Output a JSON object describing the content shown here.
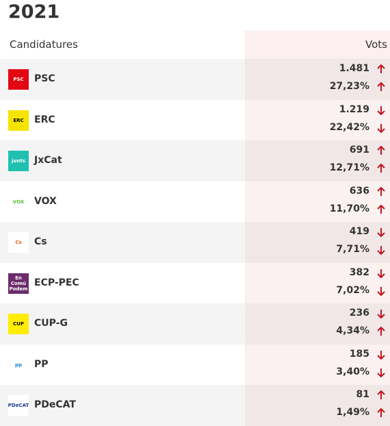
{
  "title": "2021",
  "table": {
    "headers": [
      "Candidatures",
      "Vots"
    ],
    "rows": [
      {
        "name": "PSC",
        "votes": "1.481",
        "votes_trend": "up",
        "percent": "27,23%",
        "percent_trend": "up",
        "logo": {
          "text": "PSC",
          "color": "#ffffff",
          "bg": "#e30613"
        }
      },
      {
        "name": "ERC",
        "votes": "1.219",
        "votes_trend": "down",
        "percent": "22,42%",
        "percent_trend": "down",
        "logo": {
          "text": "ERC",
          "color": "#000000",
          "bg": "#f5e400"
        }
      },
      {
        "name": "JxCat",
        "votes": "691",
        "votes_trend": "up",
        "percent": "12,71%",
        "percent_trend": "up",
        "logo": {
          "text": "junts",
          "color": "#ffffff",
          "bg": "#20c0b0"
        }
      },
      {
        "name": "VOX",
        "votes": "636",
        "votes_trend": "up",
        "percent": "11,70%",
        "percent_trend": "up",
        "logo": {
          "text": "VOX",
          "color": "#5ac035",
          "bg": "#ffffff"
        }
      },
      {
        "name": "Cs",
        "votes": "419",
        "votes_trend": "down",
        "percent": "7,71%",
        "percent_trend": "down",
        "logo": {
          "text": "Cs",
          "color": "#eb6109",
          "bg": "#ffffff"
        }
      },
      {
        "name": "ECP-PEC",
        "votes": "382",
        "votes_trend": "down",
        "percent": "7,02%",
        "percent_trend": "down",
        "logo": {
          "text": "En Comú Podem",
          "color": "#ffffff",
          "bg": "#6b2c6b"
        }
      },
      {
        "name": "CUP-G",
        "votes": "236",
        "votes_trend": "down",
        "percent": "4,34%",
        "percent_trend": "up",
        "logo": {
          "text": "CUP",
          "color": "#000000",
          "bg": "#ffed00"
        }
      },
      {
        "name": "PP",
        "votes": "185",
        "votes_trend": "down",
        "percent": "3,40%",
        "percent_trend": "down",
        "logo": {
          "text": "pp",
          "color": "#1d84ce",
          "bg": "#ffffff"
        }
      },
      {
        "name": "PDeCAT",
        "votes": "81",
        "votes_trend": "up",
        "percent": "1,49%",
        "percent_trend": "up",
        "logo": {
          "text": "PDeCAT",
          "color": "#1a3a8a",
          "bg": "#ffffff"
        }
      }
    ]
  }
}
